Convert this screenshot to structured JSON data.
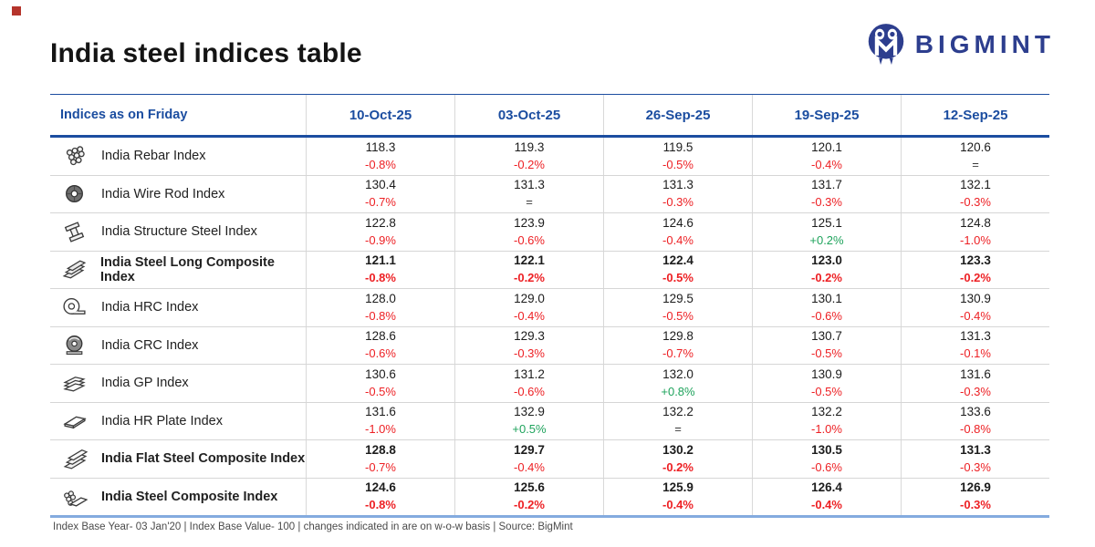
{
  "page": {
    "title": "India steel indices table"
  },
  "brand": {
    "wordmark": "BIGMINT",
    "mark": "owl-monogram-icon"
  },
  "colors": {
    "header_blue": "#1b4da0",
    "negative_red": "#ed2024",
    "positive_green": "#1fa35c",
    "brand_navy": "#2d3e8e",
    "bottom_border_blue": "#84abdf"
  },
  "table": {
    "corner_header": "Indices as on Friday",
    "date_columns": [
      "10-Oct-25",
      "03-Oct-25",
      "26-Sep-25",
      "19-Sep-25",
      "12-Sep-25"
    ],
    "rows": [
      {
        "icon": "rebar-bundle-icon",
        "name": "India Rebar Index",
        "bold": false,
        "cells": [
          {
            "value": "118.3",
            "change": "-0.8%"
          },
          {
            "value": "119.3",
            "change": "-0.2%"
          },
          {
            "value": "119.5",
            "change": "-0.5%"
          },
          {
            "value": "120.1",
            "change": "-0.4%"
          },
          {
            "value": "120.6",
            "change": "="
          }
        ]
      },
      {
        "icon": "wire-rod-coil-icon",
        "name": "India Wire Rod Index",
        "bold": false,
        "cells": [
          {
            "value": "130.4",
            "change": "-0.7%"
          },
          {
            "value": "131.3",
            "change": "="
          },
          {
            "value": "131.3",
            "change": "-0.3%"
          },
          {
            "value": "131.7",
            "change": "-0.3%"
          },
          {
            "value": "132.1",
            "change": "-0.3%"
          }
        ]
      },
      {
        "icon": "structure-steel-icon",
        "name": "India Structure Steel Index",
        "bold": false,
        "cells": [
          {
            "value": "122.8",
            "change": "-0.9%"
          },
          {
            "value": "123.9",
            "change": "-0.6%"
          },
          {
            "value": "124.6",
            "change": "-0.4%"
          },
          {
            "value": "125.1",
            "change": "+0.2%"
          },
          {
            "value": "124.8",
            "change": "-1.0%"
          }
        ]
      },
      {
        "icon": "long-steel-stack-icon",
        "name": "India Steel Long Composite Index",
        "bold": true,
        "change_bold": [
          true,
          true,
          true,
          true,
          true
        ],
        "cells": [
          {
            "value": "121.1",
            "change": "-0.8%"
          },
          {
            "value": "122.1",
            "change": "-0.2%"
          },
          {
            "value": "122.4",
            "change": "-0.5%"
          },
          {
            "value": "123.0",
            "change": "-0.2%"
          },
          {
            "value": "123.3",
            "change": "-0.2%"
          }
        ]
      },
      {
        "icon": "hrc-coil-icon",
        "name": "India HRC Index",
        "bold": false,
        "cells": [
          {
            "value": "128.0",
            "change": "-0.8%"
          },
          {
            "value": "129.0",
            "change": "-0.4%"
          },
          {
            "value": "129.5",
            "change": "-0.5%"
          },
          {
            "value": "130.1",
            "change": "-0.6%"
          },
          {
            "value": "130.9",
            "change": "-0.4%"
          }
        ]
      },
      {
        "icon": "crc-coil-icon",
        "name": "India CRC Index",
        "bold": false,
        "cells": [
          {
            "value": "128.6",
            "change": "-0.6%"
          },
          {
            "value": "129.3",
            "change": "-0.3%"
          },
          {
            "value": "129.8",
            "change": "-0.7%"
          },
          {
            "value": "130.7",
            "change": "-0.5%"
          },
          {
            "value": "131.3",
            "change": "-0.1%"
          }
        ]
      },
      {
        "icon": "gp-sheets-icon",
        "name": "India GP Index",
        "bold": false,
        "cells": [
          {
            "value": "130.6",
            "change": "-0.5%"
          },
          {
            "value": "131.2",
            "change": "-0.6%"
          },
          {
            "value": "132.0",
            "change": "+0.8%"
          },
          {
            "value": "130.9",
            "change": "-0.5%"
          },
          {
            "value": "131.6",
            "change": "-0.3%"
          }
        ]
      },
      {
        "icon": "hr-plate-icon",
        "name": "India HR Plate Index",
        "bold": false,
        "cells": [
          {
            "value": "131.6",
            "change": "-1.0%"
          },
          {
            "value": "132.9",
            "change": "+0.5%"
          },
          {
            "value": "132.2",
            "change": "="
          },
          {
            "value": "132.2",
            "change": "-1.0%"
          },
          {
            "value": "133.6",
            "change": "-0.8%"
          }
        ]
      },
      {
        "icon": "flat-steel-stack-icon",
        "name": "India Flat Steel Composite Index",
        "bold": true,
        "change_bold": [
          false,
          false,
          true,
          false,
          false
        ],
        "cells": [
          {
            "value": "128.8",
            "change": "-0.7%"
          },
          {
            "value": "129.7",
            "change": "-0.4%"
          },
          {
            "value": "130.2",
            "change": "-0.2%"
          },
          {
            "value": "130.5",
            "change": "-0.6%"
          },
          {
            "value": "131.3",
            "change": "-0.3%"
          }
        ]
      },
      {
        "icon": "steel-composite-icon",
        "name": "India Steel Composite Index",
        "bold": true,
        "change_bold": [
          true,
          true,
          true,
          true,
          true
        ],
        "cells": [
          {
            "value": "124.6",
            "change": "-0.8%"
          },
          {
            "value": "125.6",
            "change": "-0.2%"
          },
          {
            "value": "125.9",
            "change": "-0.4%"
          },
          {
            "value": "126.4",
            "change": "-0.4%"
          },
          {
            "value": "126.9",
            "change": "-0.3%"
          }
        ]
      }
    ]
  },
  "footer": {
    "note": "Index Base Year- 03 Jan'20 | Index Base Value- 100 | changes indicated in are on w-o-w basis | Source: BigMint"
  },
  "chart_data": {
    "type": "table",
    "title": "India steel indices table",
    "categories": [
      "10-Oct-25",
      "03-Oct-25",
      "26-Sep-25",
      "19-Sep-25",
      "12-Sep-25"
    ],
    "series": [
      {
        "name": "India Rebar Index",
        "values": [
          118.3,
          119.3,
          119.5,
          120.1,
          120.6
        ],
        "wow_change": [
          "-0.8%",
          "-0.2%",
          "-0.5%",
          "-0.4%",
          "="
        ]
      },
      {
        "name": "India Wire Rod Index",
        "values": [
          130.4,
          131.3,
          131.3,
          131.7,
          132.1
        ],
        "wow_change": [
          "-0.7%",
          "=",
          "-0.3%",
          "-0.3%",
          "-0.3%"
        ]
      },
      {
        "name": "India Structure Steel Index",
        "values": [
          122.8,
          123.9,
          124.6,
          125.1,
          124.8
        ],
        "wow_change": [
          "-0.9%",
          "-0.6%",
          "-0.4%",
          "+0.2%",
          "-1.0%"
        ]
      },
      {
        "name": "India Steel Long Composite Index",
        "values": [
          121.1,
          122.1,
          122.4,
          123.0,
          123.3
        ],
        "wow_change": [
          "-0.8%",
          "-0.2%",
          "-0.5%",
          "-0.2%",
          "-0.2%"
        ]
      },
      {
        "name": "India HRC Index",
        "values": [
          128.0,
          129.0,
          129.5,
          130.1,
          130.9
        ],
        "wow_change": [
          "-0.8%",
          "-0.4%",
          "-0.5%",
          "-0.6%",
          "-0.4%"
        ]
      },
      {
        "name": "India CRC Index",
        "values": [
          128.6,
          129.3,
          129.8,
          130.7,
          131.3
        ],
        "wow_change": [
          "-0.6%",
          "-0.3%",
          "-0.7%",
          "-0.5%",
          "-0.1%"
        ]
      },
      {
        "name": "India GP Index",
        "values": [
          130.6,
          131.2,
          132.0,
          130.9,
          131.6
        ],
        "wow_change": [
          "-0.5%",
          "-0.6%",
          "+0.8%",
          "-0.5%",
          "-0.3%"
        ]
      },
      {
        "name": "India HR Plate Index",
        "values": [
          131.6,
          132.9,
          132.2,
          132.2,
          133.6
        ],
        "wow_change": [
          "-1.0%",
          "+0.5%",
          "=",
          "-1.0%",
          "-0.8%"
        ]
      },
      {
        "name": "India Flat Steel Composite Index",
        "values": [
          128.8,
          129.7,
          130.2,
          130.5,
          131.3
        ],
        "wow_change": [
          "-0.7%",
          "-0.4%",
          "-0.2%",
          "-0.6%",
          "-0.3%"
        ]
      },
      {
        "name": "India Steel Composite Index",
        "values": [
          124.6,
          125.6,
          125.9,
          126.4,
          126.9
        ],
        "wow_change": [
          "-0.8%",
          "-0.2%",
          "-0.4%",
          "-0.4%",
          "-0.3%"
        ]
      }
    ],
    "note": "Index Base Year- 03 Jan'20 | Index Base Value- 100 | changes indicated in are on w-o-w basis | Source: BigMint",
    "corner_header": "Indices as on Friday"
  }
}
